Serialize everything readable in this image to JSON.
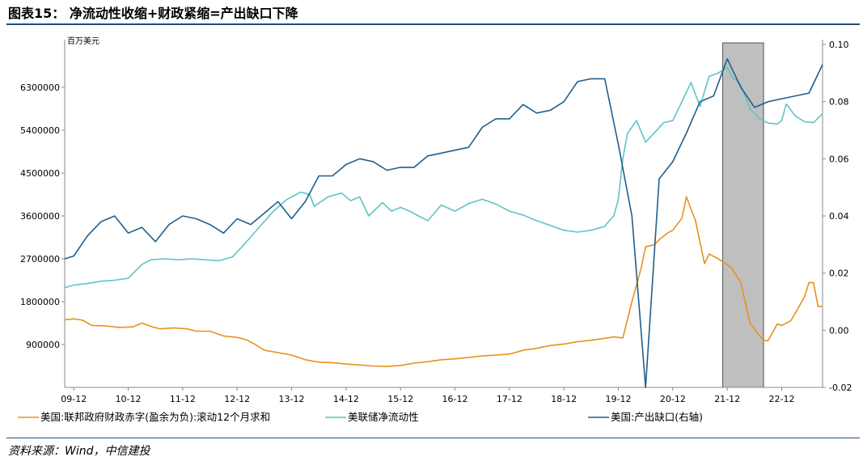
{
  "figure": {
    "title": "图表15： 净流动性收缩+财政紧缩=产出缺口下降",
    "source": "资料来源：Wind，中信建投"
  },
  "chart_data": {
    "type": "line",
    "left_axis_unit": "百万美元",
    "left_ylim": [
      0,
      7200000
    ],
    "left_ticks": [
      "900000",
      "1800000",
      "2700000",
      "3600000",
      "4500000",
      "5400000",
      "6300000"
    ],
    "right_ylim": [
      -0.02,
      0.1
    ],
    "right_ticks": [
      "-0.02",
      "0.00",
      "0.02",
      "0.04",
      "0.06",
      "0.08",
      "0.10"
    ],
    "x_range": [
      "2009-10",
      "2023-09"
    ],
    "x_ticks": [
      "09-12",
      "10-12",
      "11-12",
      "12-12",
      "13-12",
      "14-12",
      "15-12",
      "16-12",
      "17-12",
      "18-12",
      "19-12",
      "20-12",
      "21-12",
      "22-12"
    ],
    "shaded_region": [
      "2021-11",
      "2022-08"
    ],
    "legend": [
      {
        "name": "美国:联邦政府财政赤字(盈余为负):滚动12个月求和",
        "color": "#e8901e"
      },
      {
        "name": "美联储净流动性",
        "color": "#5fc3c6"
      },
      {
        "name": "美国:产出缺口(右轴)",
        "color": "#1f5f8f"
      }
    ],
    "series": [
      {
        "name": "美国:联邦政府财政赤字(盈余为负):滚动12个月求和",
        "axis": "left",
        "color": "#e8901e",
        "points": [
          [
            "2009-10",
            1420000
          ],
          [
            "2009-12",
            1440000
          ],
          [
            "2010-02",
            1410000
          ],
          [
            "2010-04",
            1300000
          ],
          [
            "2010-07",
            1290000
          ],
          [
            "2010-10",
            1260000
          ],
          [
            "2011-01",
            1270000
          ],
          [
            "2011-03",
            1350000
          ],
          [
            "2011-05",
            1280000
          ],
          [
            "2011-07",
            1230000
          ],
          [
            "2011-10",
            1250000
          ],
          [
            "2012-01",
            1230000
          ],
          [
            "2012-03",
            1180000
          ],
          [
            "2012-06",
            1180000
          ],
          [
            "2012-09",
            1080000
          ],
          [
            "2012-12",
            1050000
          ],
          [
            "2013-02",
            1000000
          ],
          [
            "2013-04",
            900000
          ],
          [
            "2013-06",
            780000
          ],
          [
            "2013-09",
            730000
          ],
          [
            "2013-12",
            680000
          ],
          [
            "2014-03",
            580000
          ],
          [
            "2014-06",
            530000
          ],
          [
            "2014-09",
            520000
          ],
          [
            "2014-12",
            490000
          ],
          [
            "2015-03",
            470000
          ],
          [
            "2015-06",
            450000
          ],
          [
            "2015-09",
            440000
          ],
          [
            "2015-12",
            460000
          ],
          [
            "2016-03",
            510000
          ],
          [
            "2016-06",
            540000
          ],
          [
            "2016-09",
            580000
          ],
          [
            "2016-12",
            600000
          ],
          [
            "2017-03",
            630000
          ],
          [
            "2017-06",
            660000
          ],
          [
            "2017-09",
            680000
          ],
          [
            "2017-12",
            700000
          ],
          [
            "2018-03",
            780000
          ],
          [
            "2018-06",
            820000
          ],
          [
            "2018-09",
            880000
          ],
          [
            "2018-12",
            910000
          ],
          [
            "2019-03",
            960000
          ],
          [
            "2019-06",
            990000
          ],
          [
            "2019-09",
            1030000
          ],
          [
            "2019-11",
            1060000
          ],
          [
            "2020-01",
            1040000
          ],
          [
            "2020-03",
            1800000
          ],
          [
            "2020-05",
            2500000
          ],
          [
            "2020-06",
            2950000
          ],
          [
            "2020-08",
            3000000
          ],
          [
            "2020-09",
            3100000
          ],
          [
            "2020-11",
            3250000
          ],
          [
            "2020-12",
            3300000
          ],
          [
            "2021-02",
            3550000
          ],
          [
            "2021-03",
            4000000
          ],
          [
            "2021-05",
            3500000
          ],
          [
            "2021-07",
            2600000
          ],
          [
            "2021-08",
            2800000
          ],
          [
            "2021-10",
            2700000
          ],
          [
            "2021-12",
            2580000
          ],
          [
            "2022-01",
            2500000
          ],
          [
            "2022-03",
            2200000
          ],
          [
            "2022-05",
            1350000
          ],
          [
            "2022-07",
            1100000
          ],
          [
            "2022-08",
            990000
          ],
          [
            "2022-09",
            980000
          ],
          [
            "2022-11",
            1330000
          ],
          [
            "2022-12",
            1300000
          ],
          [
            "2023-02",
            1400000
          ],
          [
            "2023-03",
            1560000
          ],
          [
            "2023-05",
            1900000
          ],
          [
            "2023-06",
            2200000
          ],
          [
            "2023-07",
            2200000
          ],
          [
            "2023-08",
            1700000
          ],
          [
            "2023-09",
            1700000
          ]
        ]
      },
      {
        "name": "美联储净流动性",
        "axis": "left",
        "color": "#5fc3c6",
        "points": [
          [
            "2009-10",
            2090000
          ],
          [
            "2009-12",
            2150000
          ],
          [
            "2010-03",
            2180000
          ],
          [
            "2010-06",
            2230000
          ],
          [
            "2010-09",
            2250000
          ],
          [
            "2010-12",
            2290000
          ],
          [
            "2011-03",
            2580000
          ],
          [
            "2011-05",
            2680000
          ],
          [
            "2011-08",
            2700000
          ],
          [
            "2011-11",
            2680000
          ],
          [
            "2012-02",
            2700000
          ],
          [
            "2012-05",
            2680000
          ],
          [
            "2012-08",
            2660000
          ],
          [
            "2012-11",
            2740000
          ],
          [
            "2013-02",
            3050000
          ],
          [
            "2013-05",
            3380000
          ],
          [
            "2013-08",
            3700000
          ],
          [
            "2013-11",
            3950000
          ],
          [
            "2014-02",
            4100000
          ],
          [
            "2014-04",
            4050000
          ],
          [
            "2014-05",
            3800000
          ],
          [
            "2014-08",
            4000000
          ],
          [
            "2014-11",
            4080000
          ],
          [
            "2015-01",
            3920000
          ],
          [
            "2015-03",
            4000000
          ],
          [
            "2015-05",
            3600000
          ],
          [
            "2015-08",
            3880000
          ],
          [
            "2015-10",
            3700000
          ],
          [
            "2015-12",
            3780000
          ],
          [
            "2016-02",
            3700000
          ],
          [
            "2016-04",
            3600000
          ],
          [
            "2016-06",
            3500000
          ],
          [
            "2016-09",
            3830000
          ],
          [
            "2016-12",
            3700000
          ],
          [
            "2017-03",
            3860000
          ],
          [
            "2017-06",
            3950000
          ],
          [
            "2017-09",
            3850000
          ],
          [
            "2017-12",
            3700000
          ],
          [
            "2018-03",
            3620000
          ],
          [
            "2018-06",
            3500000
          ],
          [
            "2018-09",
            3400000
          ],
          [
            "2018-12",
            3300000
          ],
          [
            "2019-03",
            3260000
          ],
          [
            "2019-06",
            3300000
          ],
          [
            "2019-09",
            3380000
          ],
          [
            "2019-10",
            3500000
          ],
          [
            "2019-11",
            3600000
          ],
          [
            "2019-12",
            3950000
          ],
          [
            "2020-01",
            4800000
          ],
          [
            "2020-02",
            5330000
          ],
          [
            "2020-04",
            5600000
          ],
          [
            "2020-06",
            5150000
          ],
          [
            "2020-08",
            5350000
          ],
          [
            "2020-10",
            5560000
          ],
          [
            "2020-12",
            5600000
          ],
          [
            "2021-02",
            6000000
          ],
          [
            "2021-04",
            6400000
          ],
          [
            "2021-06",
            5900000
          ],
          [
            "2021-08",
            6530000
          ],
          [
            "2021-10",
            6600000
          ],
          [
            "2021-12",
            6720000
          ],
          [
            "2022-01",
            6530000
          ],
          [
            "2022-03",
            6350000
          ],
          [
            "2022-05",
            5850000
          ],
          [
            "2022-07",
            5650000
          ],
          [
            "2022-09",
            5550000
          ],
          [
            "2022-11",
            5530000
          ],
          [
            "2022-12",
            5600000
          ],
          [
            "2023-01",
            5950000
          ],
          [
            "2023-03",
            5700000
          ],
          [
            "2023-05",
            5580000
          ],
          [
            "2023-07",
            5560000
          ],
          [
            "2023-09",
            5750000
          ]
        ]
      },
      {
        "name": "美国:产出缺口(右轴)",
        "axis": "right",
        "color": "#1f5f8f",
        "points": [
          [
            "2009-10",
            0.025
          ],
          [
            "2009-12",
            0.026
          ],
          [
            "2010-03",
            0.033
          ],
          [
            "2010-06",
            0.038
          ],
          [
            "2010-09",
            0.04
          ],
          [
            "2010-12",
            0.034
          ],
          [
            "2011-03",
            0.036
          ],
          [
            "2011-06",
            0.031
          ],
          [
            "2011-09",
            0.037
          ],
          [
            "2011-12",
            0.04
          ],
          [
            "2012-03",
            0.039
          ],
          [
            "2012-06",
            0.037
          ],
          [
            "2012-09",
            0.034
          ],
          [
            "2012-12",
            0.039
          ],
          [
            "2013-03",
            0.037
          ],
          [
            "2013-06",
            0.041
          ],
          [
            "2013-09",
            0.045
          ],
          [
            "2013-12",
            0.039
          ],
          [
            "2014-03",
            0.045
          ],
          [
            "2014-06",
            0.054
          ],
          [
            "2014-09",
            0.054
          ],
          [
            "2014-12",
            0.058
          ],
          [
            "2015-03",
            0.06
          ],
          [
            "2015-06",
            0.059
          ],
          [
            "2015-09",
            0.056
          ],
          [
            "2015-12",
            0.057
          ],
          [
            "2016-03",
            0.057
          ],
          [
            "2016-06",
            0.061
          ],
          [
            "2016-09",
            0.062
          ],
          [
            "2016-12",
            0.063
          ],
          [
            "2017-03",
            0.064
          ],
          [
            "2017-06",
            0.071
          ],
          [
            "2017-09",
            0.074
          ],
          [
            "2017-12",
            0.074
          ],
          [
            "2018-03",
            0.079
          ],
          [
            "2018-06",
            0.076
          ],
          [
            "2018-09",
            0.077
          ],
          [
            "2018-12",
            0.08
          ],
          [
            "2019-03",
            0.087
          ],
          [
            "2019-06",
            0.088
          ],
          [
            "2019-09",
            0.088
          ],
          [
            "2019-12",
            0.065
          ],
          [
            "2020-03",
            0.04
          ],
          [
            "2020-06",
            -0.02
          ],
          [
            "2020-09",
            0.053
          ],
          [
            "2020-12",
            0.059
          ],
          [
            "2021-03",
            0.069
          ],
          [
            "2021-06",
            0.08
          ],
          [
            "2021-09",
            0.082
          ],
          [
            "2021-12",
            0.095
          ],
          [
            "2022-03",
            0.085
          ],
          [
            "2022-06",
            0.078
          ],
          [
            "2022-09",
            0.08
          ],
          [
            "2022-12",
            0.081
          ],
          [
            "2023-03",
            0.082
          ],
          [
            "2023-06",
            0.083
          ],
          [
            "2023-09",
            0.093
          ]
        ]
      }
    ]
  }
}
